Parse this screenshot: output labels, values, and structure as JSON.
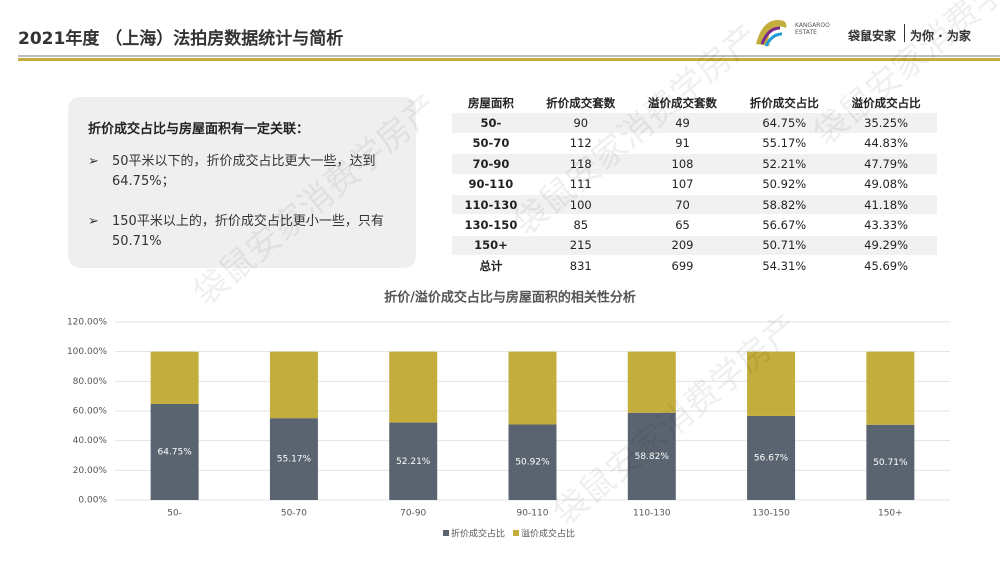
{
  "header": {
    "title": "2021年度 （上海）法拍房数据统计与简析",
    "logo_line1": "KANGAROO",
    "logo_line2": "ESTATE",
    "brand": "袋鼠安家",
    "slogan": "为你 · 为家"
  },
  "watermark": "袋鼠安家消费学房产",
  "note": {
    "heading": "折价成交占比与房屋面积有一定关联：",
    "bullets": [
      "50平米以下的，折价成交占比更大一些，达到64.75%；",
      "150平米以上的，折价成交占比更小一些，只有50.71%"
    ]
  },
  "table": {
    "columns": [
      "房屋面积",
      "折价成交套数",
      "溢价成交套数",
      "折价成交占比",
      "溢价成交占比"
    ],
    "rows": [
      [
        "50-",
        "90",
        "49",
        "64.75%",
        "35.25%"
      ],
      [
        "50-70",
        "112",
        "91",
        "55.17%",
        "44.83%"
      ],
      [
        "70-90",
        "118",
        "108",
        "52.21%",
        "47.79%"
      ],
      [
        "90-110",
        "111",
        "107",
        "50.92%",
        "49.08%"
      ],
      [
        "110-130",
        "100",
        "70",
        "58.82%",
        "41.18%"
      ],
      [
        "130-150",
        "85",
        "65",
        "56.67%",
        "43.33%"
      ],
      [
        "150+",
        "215",
        "209",
        "50.71%",
        "49.29%"
      ],
      [
        "总计",
        "831",
        "699",
        "54.31%",
        "45.69%"
      ]
    ]
  },
  "chart_data": {
    "type": "stacked_bar",
    "title": "折价/溢价成交占比与房屋面积的相关性分析",
    "categories": [
      "50-",
      "50-70",
      "70-90",
      "90-110",
      "110-130",
      "130-150",
      "150+"
    ],
    "series": [
      {
        "name": "折价成交占比",
        "color": "#5a6470",
        "values": [
          64.75,
          55.17,
          52.21,
          50.92,
          58.82,
          56.67,
          50.71
        ],
        "value_labels": [
          "64.75%",
          "55.17%",
          "52.21%",
          "50.92%",
          "58.82%",
          "56.67%",
          "50.71%"
        ]
      },
      {
        "name": "溢价成交占比",
        "color": "#c3ad3d",
        "values": [
          35.25,
          44.83,
          47.79,
          49.08,
          41.18,
          43.33,
          49.29
        ]
      }
    ],
    "ylim": [
      0,
      120
    ],
    "yticks": [
      {
        "value": 0,
        "label": "0.00%"
      },
      {
        "value": 20,
        "label": "20.00%"
      },
      {
        "value": 40,
        "label": "40.00%"
      },
      {
        "value": 60,
        "label": "60.00%"
      },
      {
        "value": 80,
        "label": "80.00%"
      },
      {
        "value": 100,
        "label": "100.00%"
      },
      {
        "value": 120,
        "label": "120.00%"
      }
    ],
    "grid": true,
    "legend": "bottom"
  }
}
